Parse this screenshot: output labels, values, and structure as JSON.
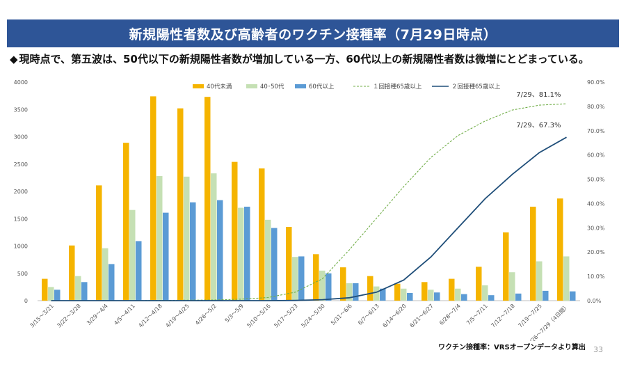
{
  "header": {
    "title": "新規陽性者数及び高齢者のワクチン接種率（7月29日時点）",
    "headline_marker": "◆",
    "headline": "現時点で、第五波は、50代以下の新規陽性者数が増加している一方、60代以上の新規陽性者数は微増にとどまっている。"
  },
  "footer": {
    "source": "ワクチン接種率：VRSオープンデータより算出",
    "page_number": "33"
  },
  "chart_data": {
    "type": "bar",
    "categories": [
      "3/15～3/21",
      "3/22～3/28",
      "3/29～4/4",
      "4/5～4/11",
      "4/12～4/18",
      "4/19～4/25",
      "4/26～5/2",
      "5/3～5/9",
      "5/10～5/16",
      "5/17～5/23",
      "5/24～5/30",
      "5/31～6/6",
      "6/7～6/13",
      "6/14～6/20",
      "6/21～6/27",
      "6/28～7/4",
      "7/5～7/11",
      "7/12～7/18",
      "7/19～7/25",
      "7/26～7/29（4日間）"
    ],
    "left_axis": {
      "ylim": [
        0,
        4000
      ],
      "ticks": [
        0,
        500,
        1000,
        1500,
        2000,
        2500,
        3000,
        3500,
        4000
      ]
    },
    "right_axis": {
      "ylim": [
        0,
        90
      ],
      "ticks": [
        "0.0%",
        "10.0%",
        "20.0%",
        "30.0%",
        "40.0%",
        "50.0%",
        "60.0%",
        "70.0%",
        "80.0%",
        "90.0%"
      ]
    },
    "series": [
      {
        "name": "40代未満",
        "kind": "bar",
        "color": "#f5b400",
        "values": [
          400,
          1010,
          2110,
          2890,
          3740,
          3520,
          3730,
          2540,
          2420,
          1350,
          850,
          610,
          450,
          310,
          340,
          400,
          620,
          1250,
          1720,
          1870
        ]
      },
      {
        "name": "40･50代",
        "kind": "bar",
        "color": "#c5e0b4",
        "values": [
          250,
          450,
          960,
          1660,
          2280,
          2270,
          2330,
          1700,
          1480,
          800,
          550,
          320,
          260,
          220,
          200,
          220,
          280,
          520,
          720,
          810
        ]
      },
      {
        "name": "60代以上",
        "kind": "bar",
        "color": "#5b9bd5",
        "values": [
          200,
          340,
          670,
          1090,
          1610,
          1800,
          1840,
          1720,
          1330,
          810,
          500,
          320,
          220,
          140,
          150,
          120,
          100,
          130,
          180,
          170
        ]
      },
      {
        "name": "１回接種65歳以上",
        "kind": "line",
        "axis": "right",
        "color": "#70ad47",
        "dashed": true,
        "values": [
          0,
          0,
          0,
          0,
          0.1,
          0.2,
          0.3,
          0.6,
          1.3,
          3.5,
          9,
          21,
          34,
          47,
          59,
          68,
          74,
          78.5,
          80.5,
          81.1
        ]
      },
      {
        "name": "２回接種65歳以上",
        "kind": "line",
        "axis": "right",
        "color": "#1f4e79",
        "dashed": false,
        "values": [
          0,
          0,
          0,
          0,
          0,
          0,
          0,
          0,
          0,
          0.1,
          0.4,
          1.2,
          3.5,
          8.5,
          18,
          30,
          42,
          52,
          61,
          67.3
        ]
      }
    ],
    "annotations": [
      {
        "text": "7/29、81.1%",
        "series": 3
      },
      {
        "text": "7/29、67.3%",
        "series": 4
      }
    ],
    "legend_position": "top",
    "grid": false
  }
}
